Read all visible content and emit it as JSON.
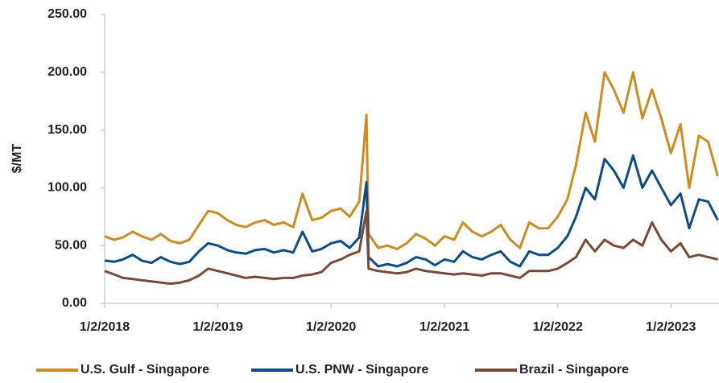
{
  "chart_data": {
    "type": "line",
    "y_label": "$/MT",
    "x": [
      "2018-01-02",
      "2018-02-02",
      "2018-03-02",
      "2018-04-02",
      "2018-05-02",
      "2018-06-02",
      "2018-07-02",
      "2018-08-02",
      "2018-09-02",
      "2018-10-02",
      "2018-11-02",
      "2018-12-02",
      "2019-01-02",
      "2019-02-02",
      "2019-03-02",
      "2019-04-02",
      "2019-05-02",
      "2019-06-02",
      "2019-07-02",
      "2019-08-02",
      "2019-09-02",
      "2019-10-02",
      "2019-11-02",
      "2019-12-02",
      "2020-01-02",
      "2020-02-02",
      "2020-03-02",
      "2020-04-02",
      "2020-04-25",
      "2020-05-02",
      "2020-06-02",
      "2020-07-02",
      "2020-08-02",
      "2020-09-02",
      "2020-10-02",
      "2020-11-02",
      "2020-12-02",
      "2021-01-02",
      "2021-02-02",
      "2021-03-02",
      "2021-04-02",
      "2021-05-02",
      "2021-06-02",
      "2021-07-02",
      "2021-08-02",
      "2021-09-02",
      "2021-10-02",
      "2021-11-02",
      "2021-12-02",
      "2022-01-02",
      "2022-02-02",
      "2022-03-02",
      "2022-04-02",
      "2022-05-02",
      "2022-06-02",
      "2022-07-02",
      "2022-08-02",
      "2022-09-02",
      "2022-10-02",
      "2022-11-02",
      "2022-12-02",
      "2023-01-02",
      "2023-02-02",
      "2023-03-02",
      "2023-04-02",
      "2023-05-02",
      "2023-06-02"
    ],
    "series": [
      {
        "name": "U.S. Gulf - Singapore",
        "color": "#d38a1c",
        "values": [
          58,
          55,
          57,
          62,
          58,
          55,
          60,
          54,
          52,
          55,
          68,
          80,
          78,
          72,
          68,
          66,
          70,
          72,
          68,
          70,
          66,
          95,
          72,
          74,
          80,
          82,
          75,
          88,
          163,
          60,
          48,
          50,
          47,
          52,
          60,
          56,
          50,
          58,
          55,
          70,
          62,
          58,
          62,
          68,
          55,
          48,
          70,
          65,
          65,
          75,
          90,
          120,
          165,
          140,
          200,
          185,
          165,
          200,
          160,
          185,
          160,
          130,
          155,
          100,
          145,
          140,
          110
        ]
      },
      {
        "name": "U.S. PNW - Singapore",
        "color": "#0b4d8c",
        "values": [
          37,
          36,
          38,
          42,
          37,
          35,
          40,
          36,
          34,
          36,
          45,
          52,
          50,
          46,
          44,
          43,
          46,
          47,
          44,
          46,
          44,
          62,
          45,
          47,
          52,
          54,
          48,
          57,
          105,
          40,
          32,
          34,
          32,
          35,
          40,
          38,
          33,
          38,
          36,
          45,
          40,
          38,
          42,
          45,
          36,
          32,
          45,
          42,
          42,
          48,
          58,
          75,
          100,
          90,
          125,
          115,
          100,
          128,
          100,
          115,
          100,
          85,
          95,
          65,
          90,
          88,
          72
        ]
      },
      {
        "name": "Brazil - Singapore",
        "color": "#7b4a36",
        "values": [
          28,
          25,
          22,
          21,
          20,
          19,
          18,
          17,
          18,
          20,
          24,
          30,
          28,
          26,
          24,
          22,
          23,
          22,
          21,
          22,
          22,
          24,
          25,
          27,
          35,
          38,
          42,
          45,
          80,
          30,
          28,
          27,
          26,
          27,
          30,
          28,
          27,
          26,
          25,
          26,
          25,
          24,
          26,
          26,
          24,
          22,
          28,
          28,
          28,
          30,
          35,
          40,
          55,
          45,
          55,
          50,
          48,
          55,
          50,
          70,
          55,
          45,
          52,
          40,
          42,
          40,
          38
        ]
      }
    ],
    "xlim": [
      "2018-01-02",
      "2023-06-06"
    ],
    "xticks": [
      {
        "value": "2018-01-02",
        "label": "1/2/2018"
      },
      {
        "value": "2019-01-02",
        "label": "1/2/2019"
      },
      {
        "value": "2020-01-02",
        "label": "1/2/2020"
      },
      {
        "value": "2021-01-02",
        "label": "1/2/2021"
      },
      {
        "value": "2022-01-02",
        "label": "1/2/2022"
      },
      {
        "value": "2023-01-02",
        "label": "1/2/2023"
      }
    ],
    "ylim": [
      0,
      250
    ],
    "yticks": [
      {
        "value": 0,
        "label": "0.00"
      },
      {
        "value": 50,
        "label": "50.00"
      },
      {
        "value": 100,
        "label": "100.00"
      },
      {
        "value": 150,
        "label": "150.00"
      },
      {
        "value": 200,
        "label": "200.00"
      },
      {
        "value": 250,
        "label": "250.00"
      }
    ],
    "grid": false,
    "legend": "bottom"
  }
}
